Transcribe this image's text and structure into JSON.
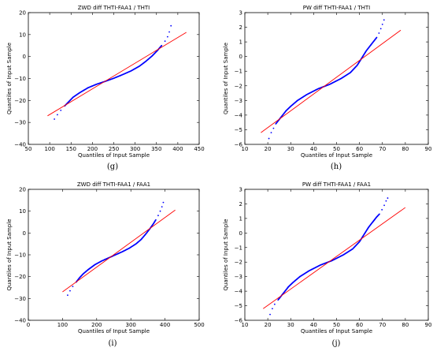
{
  "chart_data": [
    {
      "id": "g",
      "type": "scatter",
      "title": "ZWD diff THTI-FAA1 / THTI",
      "xlabel": "Quantiles of Input Sample",
      "ylabel": "Quantiles of Input Sample",
      "panel_label": "(g)",
      "xlim": [
        50,
        450
      ],
      "ylim": [
        -40,
        20
      ],
      "xticks": [
        "50",
        "100",
        "150",
        "200",
        "250",
        "300",
        "350",
        "400",
        "450"
      ],
      "yticks": [
        "20",
        "10",
        "0",
        "−10",
        "−20",
        "−30",
        "−40"
      ],
      "grid": false,
      "series": [
        {
          "kind": "points",
          "color": "#0000ff",
          "x": [
            111,
            118,
            126,
            135,
            145,
            155,
            170,
            190,
            210,
            230,
            250,
            270,
            290,
            310,
            325,
            340,
            352,
            362,
            370,
            376,
            380,
            384
          ],
          "y": [
            -28.5,
            -26.5,
            -24.5,
            -22.5,
            -20.5,
            -18.5,
            -16.5,
            -14.2,
            -12.6,
            -11.3,
            -9.9,
            -8.3,
            -6.6,
            -4.4,
            -2.2,
            0.3,
            2.7,
            5.0,
            7.0,
            9.0,
            11.2,
            14.0
          ]
        },
        {
          "kind": "line",
          "color": "#ff0000",
          "x": [
            95,
            420
          ],
          "y": [
            -27,
            11
          ]
        }
      ]
    },
    {
      "id": "h",
      "type": "scatter",
      "title": "PW diff THTI-FAA1 / THTI",
      "xlabel": "Quantiles of Input Sample",
      "ylabel": "Quantiles of Input Sample",
      "panel_label": "(h)",
      "xlim": [
        10,
        90
      ],
      "ylim": [
        -6,
        3
      ],
      "xticks": [
        "10",
        "20",
        "30",
        "40",
        "50",
        "60",
        "70",
        "80",
        "90"
      ],
      "yticks": [
        "3",
        "2",
        "1",
        "0",
        "−1",
        "−2",
        "−3",
        "−4",
        "−5",
        "−6"
      ],
      "grid": false,
      "series": [
        {
          "kind": "points",
          "color": "#0000ff",
          "x": [
            20.5,
            21.5,
            22.5,
            23.5,
            25,
            26.5,
            28,
            30,
            33,
            37,
            42,
            47,
            52,
            56,
            59,
            61,
            63,
            65,
            66.5,
            67.5,
            68.5,
            69.3,
            70,
            70.7
          ],
          "y": [
            -5.6,
            -5.2,
            -4.9,
            -4.6,
            -4.3,
            -4.0,
            -3.7,
            -3.4,
            -3.0,
            -2.6,
            -2.2,
            -1.9,
            -1.5,
            -1.1,
            -0.6,
            -0.1,
            0.4,
            0.8,
            1.1,
            1.3,
            1.6,
            1.9,
            2.2,
            2.5
          ]
        },
        {
          "kind": "line",
          "color": "#ff0000",
          "x": [
            17,
            78
          ],
          "y": [
            -5.2,
            1.8
          ]
        }
      ]
    },
    {
      "id": "i",
      "type": "scatter",
      "title": "ZWD diff THTI-FAA1 / FAA1",
      "xlabel": "Quantiles of Input Sample",
      "ylabel": "Quantiles of Input Sample",
      "panel_label": "(i)",
      "xlim": [
        0,
        500
      ],
      "ylim": [
        -40,
        20
      ],
      "xticks": [
        "0",
        "100",
        "200",
        "300",
        "400",
        "500"
      ],
      "yticks": [
        "20",
        "10",
        "0",
        "−10",
        "−20",
        "−30",
        "−40"
      ],
      "grid": false,
      "series": [
        {
          "kind": "points",
          "color": "#0000ff",
          "x": [
            115,
            122,
            130,
            140,
            150,
            160,
            175,
            195,
            215,
            235,
            255,
            275,
            295,
            315,
            330,
            343,
            355,
            365,
            373,
            380,
            386,
            391,
            395
          ],
          "y": [
            -28.5,
            -26.5,
            -24.5,
            -22.5,
            -20.5,
            -18.8,
            -16.8,
            -14.5,
            -12.8,
            -11.4,
            -10.0,
            -8.6,
            -7.0,
            -5.0,
            -3.0,
            -0.6,
            1.8,
            4.0,
            6.0,
            8.0,
            10.0,
            12.0,
            14.0
          ]
        },
        {
          "kind": "line",
          "color": "#ff0000",
          "x": [
            100,
            430
          ],
          "y": [
            -27,
            10.5
          ]
        }
      ]
    },
    {
      "id": "j",
      "type": "scatter",
      "title": "PW diff THTI-FAA1 / FAA1",
      "xlabel": "Quantiles of Input Sample",
      "ylabel": "Quantiles of Input Sample",
      "panel_label": "(j)",
      "xlim": [
        10,
        90
      ],
      "ylim": [
        -6,
        3
      ],
      "xticks": [
        "10",
        "20",
        "30",
        "40",
        "50",
        "60",
        "70",
        "80",
        "90"
      ],
      "yticks": [
        "3",
        "2",
        "1",
        "0",
        "−1",
        "−2",
        "−3",
        "−4",
        "−5",
        "−6"
      ],
      "grid": false,
      "series": [
        {
          "kind": "points",
          "color": "#0000ff",
          "x": [
            21,
            22,
            23,
            24.5,
            26,
            27.5,
            29,
            31,
            34,
            38,
            43,
            48,
            53,
            57,
            60,
            62,
            64,
            66,
            67.5,
            68.7,
            69.8,
            70.8,
            71.6,
            72.3
          ],
          "y": [
            -5.6,
            -5.2,
            -4.9,
            -4.6,
            -4.3,
            -4.0,
            -3.7,
            -3.4,
            -3.0,
            -2.6,
            -2.2,
            -1.9,
            -1.5,
            -1.1,
            -0.6,
            -0.1,
            0.4,
            0.8,
            1.1,
            1.3,
            1.6,
            1.9,
            2.2,
            2.4
          ]
        },
        {
          "kind": "line",
          "color": "#ff0000",
          "x": [
            18,
            80
          ],
          "y": [
            -5.2,
            1.75
          ]
        }
      ]
    }
  ]
}
